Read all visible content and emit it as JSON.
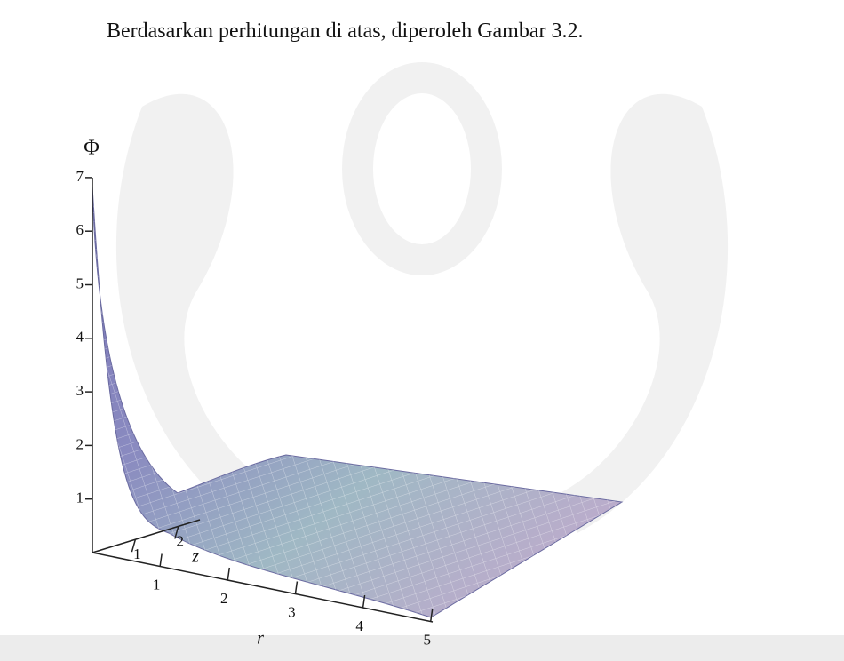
{
  "body": {
    "sentence": "Berdasarkan perhitungan di atas, diperoleh Gambar 3.2."
  },
  "figure": {
    "phi_axis": {
      "label": "Φ",
      "ticks": [
        1,
        2,
        3,
        4,
        5,
        6,
        7
      ]
    },
    "z_axis": {
      "label": "z",
      "ticks": [
        1,
        2
      ]
    },
    "r_axis": {
      "label": "r",
      "ticks": [
        1,
        2,
        3,
        4,
        5
      ]
    }
  }
}
